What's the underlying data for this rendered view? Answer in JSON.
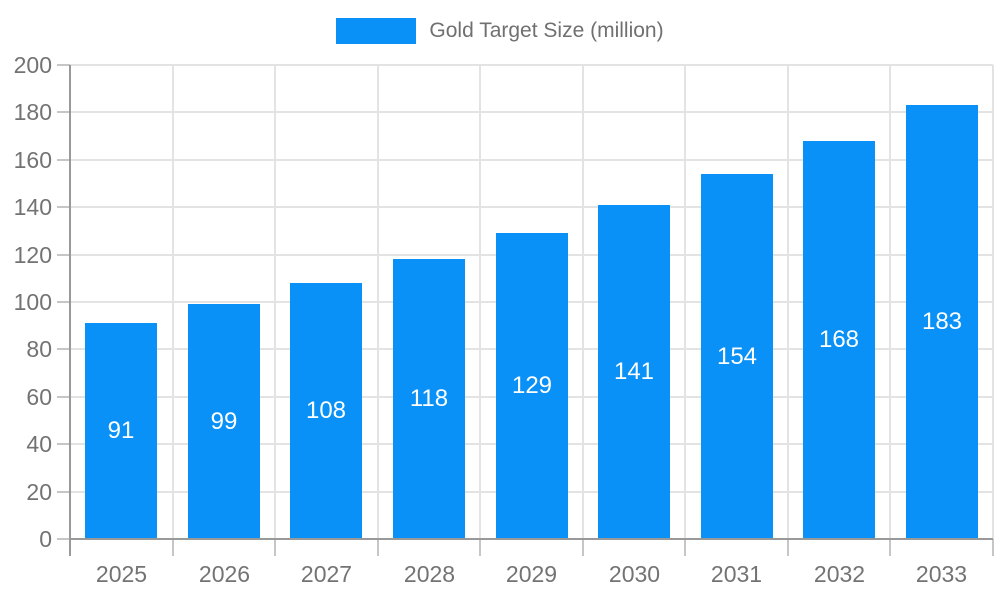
{
  "chart_data": {
    "type": "bar",
    "title": "",
    "legend": "Gold Target Size (million)",
    "legend_position": "top-center",
    "categories": [
      "2025",
      "2026",
      "2027",
      "2028",
      "2029",
      "2030",
      "2031",
      "2032",
      "2033"
    ],
    "values": [
      91,
      99,
      108,
      118,
      129,
      141,
      154,
      168,
      183
    ],
    "yticks": [
      0,
      20,
      40,
      60,
      80,
      100,
      120,
      140,
      160,
      180,
      200
    ],
    "ylim": [
      0,
      200
    ],
    "xlabel": "",
    "ylabel": "",
    "grid": true,
    "colors": {
      "bar": "#0991f7",
      "bar_value_text": "#ffffff",
      "axis_text": "#737373",
      "legend_text": "#707070",
      "gridline": "#e3e3e3",
      "axis_line": "#999999",
      "tick": "#c6c6c6",
      "background": "#ffffff"
    }
  }
}
